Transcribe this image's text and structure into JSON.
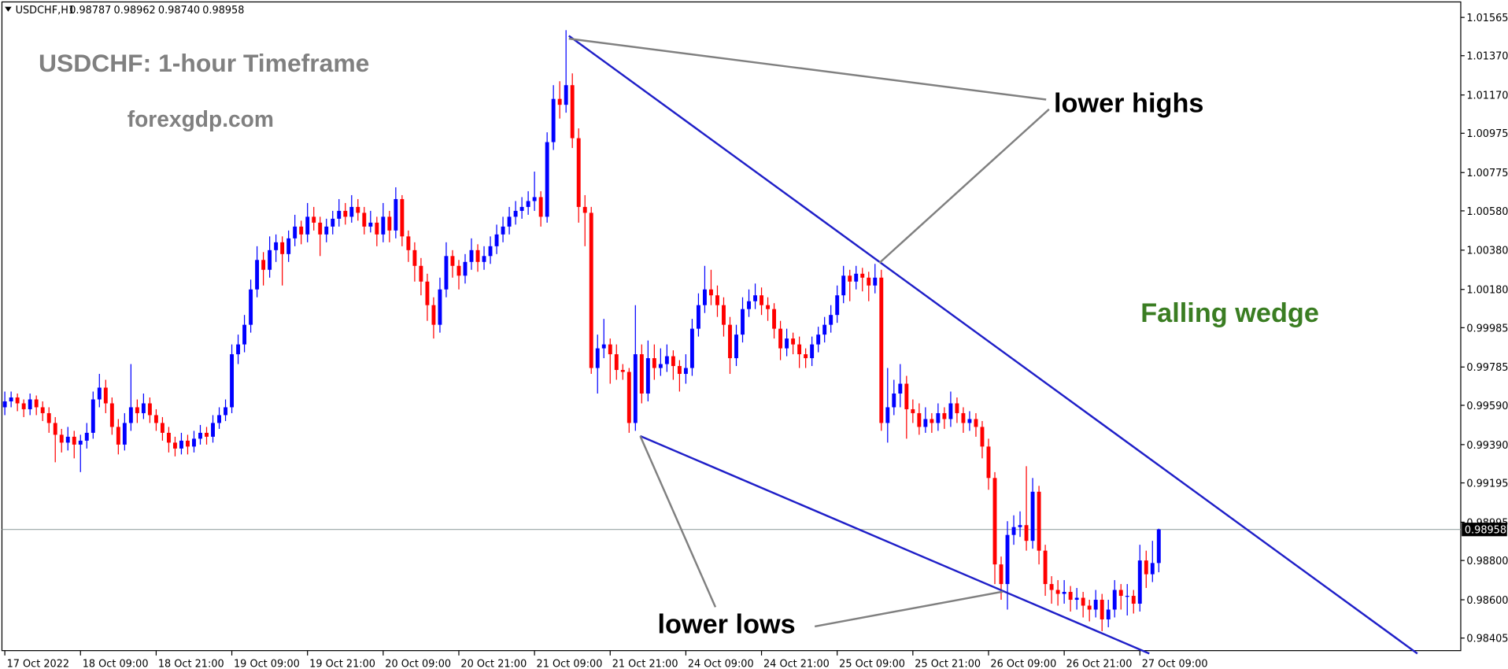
{
  "chart_data": {
    "type": "candlestick",
    "symbol": "USDCHF,H1",
    "header_values": [
      "0.98787",
      "0.98962",
      "0.98740",
      "0.98958"
    ],
    "title": "USDCHF: 1-hour Timeframe",
    "subtitle": "forexgdp.com",
    "annotations": {
      "upper": "lower highs",
      "lower": "lower lows",
      "pattern": "Falling wedge"
    },
    "bull_color": "#0000ff",
    "bear_color": "#ff0000",
    "last_price": 0.98958,
    "last_price_label": "0.98958",
    "ylim": [
      0.98405,
      1.01565
    ],
    "yticks": [
      1.01565,
      {
        "value": 1.0137,
        "label": "1.01370"
      },
      {
        "value": 1.0117,
        "label": "1.01170"
      },
      1.00975,
      1.00775,
      {
        "value": 1.0058,
        "label": "1.00580"
      },
      {
        "value": 1.0038,
        "label": "1.00380"
      },
      {
        "value": 1.0018,
        "label": "1.00180"
      },
      0.99985,
      0.99785,
      {
        "value": 0.9959,
        "label": "0.99590"
      },
      {
        "value": 0.9939,
        "label": "0.99390"
      },
      0.99195,
      0.98995,
      {
        "value": 0.988,
        "label": "0.98800"
      },
      {
        "value": 0.986,
        "label": "0.98600"
      },
      0.98405
    ],
    "categories": [
      "17 Oct 2022",
      null,
      null,
      null,
      null,
      null,
      null,
      null,
      null,
      null,
      null,
      null,
      "18 Oct 09:00",
      null,
      null,
      null,
      null,
      null,
      null,
      null,
      null,
      null,
      null,
      null,
      "18 Oct 21:00",
      null,
      null,
      null,
      null,
      null,
      null,
      null,
      null,
      null,
      null,
      null,
      "19 Oct 09:00",
      null,
      null,
      null,
      null,
      null,
      null,
      null,
      null,
      null,
      null,
      null,
      "19 Oct 21:00",
      null,
      null,
      null,
      null,
      null,
      null,
      null,
      null,
      null,
      null,
      null,
      "20 Oct 09:00",
      null,
      null,
      null,
      null,
      null,
      null,
      null,
      null,
      null,
      null,
      null,
      "20 Oct 21:00",
      null,
      null,
      null,
      null,
      null,
      null,
      null,
      null,
      null,
      null,
      null,
      "21 Oct 09:00",
      null,
      null,
      null,
      null,
      null,
      null,
      null,
      null,
      null,
      null,
      null,
      "21 Oct 21:00",
      null,
      null,
      null,
      null,
      null,
      null,
      null,
      null,
      null,
      null,
      null,
      "24 Oct 09:00",
      null,
      null,
      null,
      null,
      null,
      null,
      null,
      null,
      null,
      null,
      null,
      "24 Oct 21:00",
      null,
      null,
      null,
      null,
      null,
      null,
      null,
      null,
      null,
      null,
      null,
      "25 Oct 09:00",
      null,
      null,
      null,
      null,
      null,
      null,
      null,
      null,
      null,
      null,
      null,
      "25 Oct 21:00",
      null,
      null,
      null,
      null,
      null,
      null,
      null,
      null,
      null,
      null,
      null,
      "26 Oct 09:00",
      null,
      null,
      null,
      null,
      null,
      null,
      null,
      null,
      null,
      null,
      null,
      "26 Oct 21:00",
      null,
      null,
      null,
      null,
      null,
      null,
      null,
      null,
      null,
      null,
      null,
      "27 Oct 09:00",
      null,
      null,
      null
    ],
    "ohlc": [
      [
        0.9958,
        0.9966,
        0.9954,
        0.9961
      ],
      [
        0.9961,
        0.9966,
        0.9958,
        0.9963
      ],
      [
        0.9963,
        0.9965,
        0.9956,
        0.996
      ],
      [
        0.996,
        0.9962,
        0.9953,
        0.9957
      ],
      [
        0.9957,
        0.9965,
        0.9954,
        0.9962
      ],
      [
        0.9962,
        0.9964,
        0.9954,
        0.9958
      ],
      [
        0.9958,
        0.9961,
        0.9951,
        0.9955
      ],
      [
        0.9955,
        0.9958,
        0.9945,
        0.995
      ],
      [
        0.995,
        0.9953,
        0.993,
        0.9944
      ],
      [
        0.9944,
        0.9947,
        0.9935,
        0.994
      ],
      [
        0.994,
        0.9948,
        0.9936,
        0.9943
      ],
      [
        0.9943,
        0.9946,
        0.9932,
        0.9939
      ],
      [
        0.9939,
        0.9944,
        0.9925,
        0.9941
      ],
      [
        0.9941,
        0.995,
        0.9937,
        0.9945
      ],
      [
        0.9945,
        0.9966,
        0.9942,
        0.9962
      ],
      [
        0.9962,
        0.9975,
        0.9958,
        0.9968
      ],
      [
        0.9968,
        0.9972,
        0.9955,
        0.996
      ],
      [
        0.996,
        0.9963,
        0.9944,
        0.9948
      ],
      [
        0.9948,
        0.9952,
        0.9934,
        0.9939
      ],
      [
        0.9939,
        0.9955,
        0.9936,
        0.995
      ],
      [
        0.995,
        0.998,
        0.9946,
        0.9958
      ],
      [
        0.9958,
        0.9962,
        0.995,
        0.9955
      ],
      [
        0.9955,
        0.9965,
        0.9952,
        0.996
      ],
      [
        0.996,
        0.9963,
        0.995,
        0.9954
      ],
      [
        0.9954,
        0.9957,
        0.9946,
        0.995
      ],
      [
        0.995,
        0.9953,
        0.9941,
        0.9945
      ],
      [
        0.9945,
        0.9948,
        0.9935,
        0.994
      ],
      [
        0.994,
        0.9943,
        0.9933,
        0.9937
      ],
      [
        0.9937,
        0.9945,
        0.9934,
        0.9941
      ],
      [
        0.9941,
        0.9944,
        0.9934,
        0.9938
      ],
      [
        0.9938,
        0.9946,
        0.9935,
        0.9942
      ],
      [
        0.9942,
        0.9949,
        0.9939,
        0.9945
      ],
      [
        0.9945,
        0.9948,
        0.9939,
        0.9943
      ],
      [
        0.9943,
        0.9954,
        0.994,
        0.995
      ],
      [
        0.995,
        0.9958,
        0.9947,
        0.9954
      ],
      [
        0.9954,
        0.9962,
        0.9951,
        0.9958
      ],
      [
        0.9958,
        0.999,
        0.9955,
        0.9985
      ],
      [
        0.9985,
        0.9995,
        0.998,
        0.999
      ],
      [
        0.999,
        1.0005,
        0.9986,
        1.0
      ],
      [
        1.0,
        1.0023,
        0.9996,
        1.0018
      ],
      [
        1.0018,
        1.004,
        1.0014,
        1.0033
      ],
      [
        1.0033,
        1.0037,
        1.002,
        1.0028
      ],
      [
        1.0028,
        1.0045,
        1.0024,
        1.0038
      ],
      [
        1.0038,
        1.0046,
        1.0032,
        1.0042
      ],
      [
        1.0042,
        1.0045,
        1.002,
        1.0036
      ],
      [
        1.0036,
        1.0048,
        1.0032,
        1.0044
      ],
      [
        1.0044,
        1.0056,
        1.004,
        1.005
      ],
      [
        1.005,
        1.0053,
        1.0041,
        1.0046
      ],
      [
        1.0046,
        1.0062,
        1.0042,
        1.0055
      ],
      [
        1.0055,
        1.006,
        1.0048,
        1.0052
      ],
      [
        1.0052,
        1.0055,
        1.0035,
        1.0046
      ],
      [
        1.0046,
        1.0054,
        1.0042,
        1.005
      ],
      [
        1.005,
        1.0058,
        1.0046,
        1.0054
      ],
      [
        1.0054,
        1.0064,
        1.005,
        1.0058
      ],
      [
        1.0058,
        1.0062,
        1.0051,
        1.0055
      ],
      [
        1.0055,
        1.0066,
        1.0052,
        1.006
      ],
      [
        1.006,
        1.0064,
        1.0053,
        1.0057
      ],
      [
        1.0057,
        1.006,
        1.0046,
        1.005
      ],
      [
        1.005,
        1.0058,
        1.0047,
        1.0052
      ],
      [
        1.0052,
        1.0055,
        1.004,
        1.0046
      ],
      [
        1.0046,
        1.0062,
        1.0042,
        1.0055
      ],
      [
        1.0055,
        1.0058,
        1.0042,
        1.0048
      ],
      [
        1.0048,
        1.007,
        1.0044,
        1.0064
      ],
      [
        1.0064,
        1.0066,
        1.004,
        1.0045
      ],
      [
        1.0045,
        1.0048,
        1.0032,
        1.0038
      ],
      [
        1.0038,
        1.0042,
        1.0022,
        1.003
      ],
      [
        1.003,
        1.0034,
        1.0015,
        1.0022
      ],
      [
        1.0022,
        1.0026,
        1.0002,
        1.001
      ],
      [
        1.001,
        1.0014,
        0.9993,
        1.0
      ],
      [
        1.0,
        1.0024,
        0.9996,
        1.0018
      ],
      [
        1.0018,
        1.0042,
        1.0014,
        1.0035
      ],
      [
        1.0035,
        1.0038,
        1.0024,
        1.003
      ],
      [
        1.003,
        1.0033,
        1.0018,
        1.0025
      ],
      [
        1.0025,
        1.0036,
        1.0021,
        1.0032
      ],
      [
        1.0032,
        1.0044,
        1.0028,
        1.0038
      ],
      [
        1.0038,
        1.0041,
        1.0027,
        1.0032
      ],
      [
        1.0032,
        1.004,
        1.0028,
        1.0035
      ],
      [
        1.0035,
        1.0045,
        1.0031,
        1.004
      ],
      [
        1.004,
        1.0051,
        1.0036,
        1.0046
      ],
      [
        1.0046,
        1.0055,
        1.0042,
        1.005
      ],
      [
        1.005,
        1.006,
        1.0046,
        1.0055
      ],
      [
        1.0055,
        1.0063,
        1.0051,
        1.0058
      ],
      [
        1.0058,
        1.0065,
        1.0054,
        1.006
      ],
      [
        1.006,
        1.0068,
        1.0056,
        1.0063
      ],
      [
        1.0063,
        1.0078,
        1.0058,
        1.0065
      ],
      [
        1.0065,
        1.0068,
        1.005,
        1.0055
      ],
      [
        1.0055,
        1.0098,
        1.0052,
        1.0093
      ],
      [
        1.0093,
        1.0122,
        1.0089,
        1.0115
      ],
      [
        1.0115,
        1.0124,
        1.0105,
        1.0112
      ],
      [
        1.0112,
        1.015,
        1.0108,
        1.0122
      ],
      [
        1.0122,
        1.0128,
        1.009,
        1.0095
      ],
      [
        1.0095,
        1.01,
        1.0052,
        1.006
      ],
      [
        1.006,
        1.0066,
        1.004,
        1.0057
      ],
      [
        1.0057,
        1.006,
        0.9975,
        0.9978
      ],
      [
        0.9978,
        0.9995,
        0.9965,
        0.9988
      ],
      [
        0.9988,
        1.0003,
        0.9983,
        0.999
      ],
      [
        0.999,
        0.9993,
        0.997,
        0.9985
      ],
      [
        0.9985,
        0.999,
        0.9972,
        0.9977
      ],
      [
        0.9977,
        0.998,
        0.9972,
        0.9976
      ],
      [
        0.9976,
        0.9978,
        0.9945,
        0.995
      ],
      [
        0.995,
        1.001,
        0.9946,
        0.9985
      ],
      [
        0.9985,
        0.999,
        0.996,
        0.9965
      ],
      [
        0.9965,
        0.9992,
        0.9961,
        0.9983
      ],
      [
        0.9983,
        0.999,
        0.9972,
        0.9978
      ],
      [
        0.9978,
        0.9988,
        0.9974,
        0.998
      ],
      [
        0.998,
        0.999,
        0.9976,
        0.9984
      ],
      [
        0.9984,
        0.9987,
        0.9972,
        0.9979
      ],
      [
        0.9979,
        0.9982,
        0.9966,
        0.9975
      ],
      [
        0.9975,
        0.9985,
        0.997,
        0.9978
      ],
      [
        0.9978,
        1.0003,
        0.9974,
        0.9998
      ],
      [
        0.9998,
        1.0016,
        0.9994,
        1.001
      ],
      [
        1.001,
        1.003,
        1.0006,
        1.0018
      ],
      [
        1.0018,
        1.0028,
        1.001,
        1.0015
      ],
      [
        1.0015,
        1.002,
        1.0004,
        1.001
      ],
      [
        1.001,
        1.0014,
        0.9994,
        1.0
      ],
      [
        1.0,
        1.0004,
        0.9975,
        0.9983
      ],
      [
        0.9983,
        1.0,
        0.9979,
        0.9995
      ],
      [
        0.9995,
        1.0014,
        0.9991,
        1.0008
      ],
      [
        1.0008,
        1.0018,
        1.0004,
        1.0012
      ],
      [
        1.0012,
        1.0021,
        1.0008,
        1.0015
      ],
      [
        1.0015,
        1.0019,
        1.0005,
        1.001
      ],
      [
        1.001,
        1.0014,
        1.0002,
        1.0008
      ],
      [
        1.0008,
        1.0011,
        0.9993,
        0.9998
      ],
      [
        0.9998,
        1.0002,
        0.9982,
        0.9988
      ],
      [
        0.9988,
        0.9998,
        0.9984,
        0.9993
      ],
      [
        0.9993,
        0.9996,
        0.9985,
        0.999
      ],
      [
        0.999,
        0.9994,
        0.9978,
        0.9985
      ],
      [
        0.9985,
        0.9988,
        0.9978,
        0.9983
      ],
      [
        0.9983,
        0.9994,
        0.9979,
        0.999
      ],
      [
        0.999,
        0.9999,
        0.9986,
        0.9995
      ],
      [
        0.9995,
        1.0004,
        0.9991,
        1.0
      ],
      [
        1.0,
        1.001,
        0.9996,
        1.0005
      ],
      [
        1.0005,
        1.002,
        1.0001,
        1.0015
      ],
      [
        1.0015,
        1.003,
        1.0011,
        1.0025
      ],
      [
        1.0025,
        1.0028,
        1.0012,
        1.0022
      ],
      [
        1.0022,
        1.003,
        1.0018,
        1.0026
      ],
      [
        1.0026,
        1.0029,
        1.0017,
        1.0024
      ],
      [
        1.0024,
        1.0027,
        1.0012,
        1.002
      ],
      [
        1.002,
        1.0031,
        1.0016,
        1.0024
      ],
      [
        1.0024,
        1.0028,
        0.9946,
        0.995
      ],
      [
        0.995,
        0.9978,
        0.994,
        0.9958
      ],
      [
        0.9958,
        0.9972,
        0.9954,
        0.9965
      ],
      [
        0.9965,
        0.998,
        0.9958,
        0.997
      ],
      [
        0.997,
        0.9974,
        0.9942,
        0.9957
      ],
      [
        0.9957,
        0.9962,
        0.995,
        0.9955
      ],
      [
        0.9955,
        0.996,
        0.9944,
        0.9948
      ],
      [
        0.9948,
        0.9958,
        0.9945,
        0.9952
      ],
      [
        0.9952,
        0.9955,
        0.9945,
        0.995
      ],
      [
        0.995,
        0.996,
        0.9946,
        0.9955
      ],
      [
        0.9955,
        0.9958,
        0.9947,
        0.9952
      ],
      [
        0.9952,
        0.9966,
        0.9948,
        0.996
      ],
      [
        0.996,
        0.9963,
        0.995,
        0.9955
      ],
      [
        0.9955,
        0.9958,
        0.9945,
        0.995
      ],
      [
        0.995,
        0.9956,
        0.9946,
        0.9952
      ],
      [
        0.9952,
        0.9955,
        0.9943,
        0.9948
      ],
      [
        0.9948,
        0.9951,
        0.9932,
        0.9938
      ],
      [
        0.9938,
        0.9942,
        0.9916,
        0.9922
      ],
      [
        0.9922,
        0.9925,
        0.9868,
        0.9878
      ],
      [
        0.9878,
        0.9882,
        0.986,
        0.9868
      ],
      [
        0.9868,
        0.99,
        0.9855,
        0.9893
      ],
      [
        0.9893,
        0.9903,
        0.9888,
        0.9897
      ],
      [
        0.9897,
        0.9905,
        0.9892,
        0.9898
      ],
      [
        0.9898,
        0.9928,
        0.9885,
        0.989
      ],
      [
        0.989,
        0.9922,
        0.9886,
        0.9915
      ],
      [
        0.9915,
        0.9918,
        0.9878,
        0.9885
      ],
      [
        0.9885,
        0.9888,
        0.9862,
        0.9868
      ],
      [
        0.9868,
        0.9872,
        0.9858,
        0.9865
      ],
      [
        0.9865,
        0.987,
        0.9857,
        0.9863
      ],
      [
        0.9863,
        0.987,
        0.9858,
        0.9864
      ],
      [
        0.9864,
        0.9867,
        0.9854,
        0.986
      ],
      [
        0.986,
        0.9866,
        0.9855,
        0.9861
      ],
      [
        0.9861,
        0.9864,
        0.9851,
        0.9857
      ],
      [
        0.9857,
        0.986,
        0.9849,
        0.9855
      ],
      [
        0.9855,
        0.9865,
        0.9851,
        0.986
      ],
      [
        0.986,
        0.9863,
        0.9844,
        0.985
      ],
      [
        0.985,
        0.986,
        0.9846,
        0.9855
      ],
      [
        0.9855,
        0.987,
        0.9851,
        0.9865
      ],
      [
        0.9865,
        0.9868,
        0.9855,
        0.9862
      ],
      [
        0.9862,
        0.9868,
        0.9852,
        0.9862
      ],
      [
        0.9862,
        0.9865,
        0.9853,
        0.9858
      ],
      [
        0.9858,
        0.9888,
        0.9854,
        0.988
      ],
      [
        0.988,
        0.9885,
        0.9866,
        0.9873
      ],
      [
        0.9873,
        0.989,
        0.9869,
        0.98787
      ],
      [
        0.98787,
        0.98962,
        0.9874,
        0.98958
      ]
    ]
  }
}
